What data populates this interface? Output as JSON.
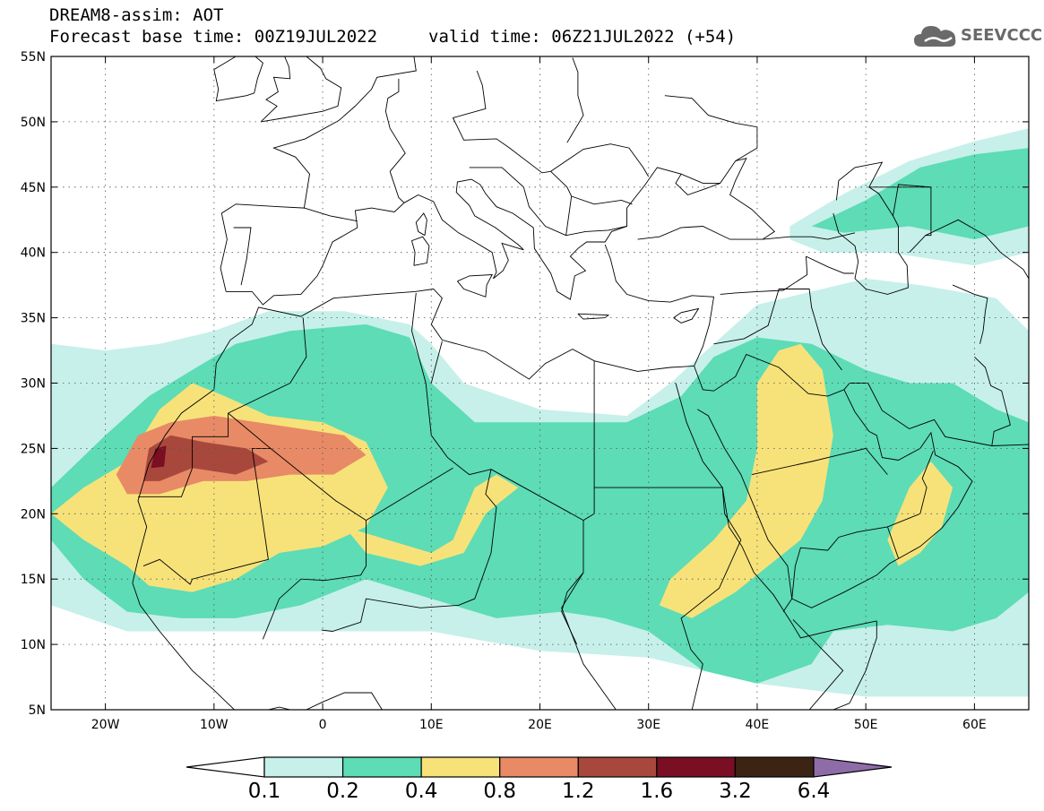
{
  "title": {
    "line1": "DREAM8-assim: AOT",
    "base_time": "Forecast base time: 00Z19JUL2022",
    "valid_time": "valid time: 06Z21JUL2022 (+54)"
  },
  "logo": {
    "text": "SEEVCCC",
    "icon": "cloud-icon"
  },
  "map_axes": {
    "lon_range": [
      -25,
      65
    ],
    "lat_range": [
      5,
      55
    ],
    "lon_ticks": [
      {
        "value": -20,
        "label": "20W"
      },
      {
        "value": -10,
        "label": "10W"
      },
      {
        "value": 0,
        "label": "0"
      },
      {
        "value": 10,
        "label": "10E"
      },
      {
        "value": 20,
        "label": "20E"
      },
      {
        "value": 30,
        "label": "30E"
      },
      {
        "value": 40,
        "label": "40E"
      },
      {
        "value": 50,
        "label": "50E"
      },
      {
        "value": 60,
        "label": "60E"
      }
    ],
    "lat_ticks": [
      {
        "value": 5,
        "label": "5N"
      },
      {
        "value": 10,
        "label": "10N"
      },
      {
        "value": 15,
        "label": "15N"
      },
      {
        "value": 20,
        "label": "20N"
      },
      {
        "value": 25,
        "label": "25N"
      },
      {
        "value": 30,
        "label": "30N"
      },
      {
        "value": 35,
        "label": "35N"
      },
      {
        "value": 40,
        "label": "40N"
      },
      {
        "value": 45,
        "label": "45N"
      },
      {
        "value": 50,
        "label": "50N"
      },
      {
        "value": 55,
        "label": "55N"
      }
    ],
    "grid": "dotted"
  },
  "colorbar": {
    "labels": [
      "0.1",
      "0.2",
      "0.4",
      "0.8",
      "1.2",
      "1.6",
      "3.2",
      "6.4"
    ],
    "colors": [
      "#ffffff",
      "#c7f0ea",
      "#5ddcb6",
      "#f7e27a",
      "#e88a66",
      "#a8483d",
      "#7a0e22",
      "#3b2414",
      "#8e6ca8"
    ]
  },
  "aot_regions": [
    {
      "level": 1,
      "polygon": [
        [
          -25,
          33
        ],
        [
          -20,
          32.5
        ],
        [
          -15,
          33
        ],
        [
          -10,
          34
        ],
        [
          -5,
          35.5
        ],
        [
          2,
          35.5
        ],
        [
          8,
          34.5
        ],
        [
          10,
          33
        ],
        [
          13,
          30
        ],
        [
          20,
          28
        ],
        [
          28,
          27.5
        ],
        [
          32,
          30
        ],
        [
          36,
          33
        ],
        [
          40,
          36
        ],
        [
          45,
          37
        ],
        [
          50,
          38
        ],
        [
          55,
          37.5
        ],
        [
          62,
          36.5
        ],
        [
          65,
          34
        ],
        [
          65,
          6
        ],
        [
          50,
          6
        ],
        [
          40,
          7
        ],
        [
          30,
          9
        ],
        [
          20,
          9.5
        ],
        [
          10,
          11
        ],
        [
          0,
          11
        ],
        [
          -10,
          11
        ],
        [
          -18,
          11
        ],
        [
          -25,
          13
        ]
      ]
    },
    {
      "level": 1,
      "polygon": [
        [
          43,
          42
        ],
        [
          48,
          44.5
        ],
        [
          54,
          47
        ],
        [
          60,
          48.5
        ],
        [
          65,
          49.5
        ],
        [
          65,
          40
        ],
        [
          60,
          39
        ],
        [
          52,
          40
        ],
        [
          46,
          40
        ],
        [
          43,
          41
        ]
      ]
    },
    {
      "level": 2,
      "polygon": [
        [
          -25,
          22
        ],
        [
          -20,
          26
        ],
        [
          -16,
          29
        ],
        [
          -12,
          31
        ],
        [
          -8,
          33
        ],
        [
          -3,
          34
        ],
        [
          4,
          34.5
        ],
        [
          8,
          33.5
        ],
        [
          10,
          30
        ],
        [
          14,
          27
        ],
        [
          20,
          27
        ],
        [
          28,
          27
        ],
        [
          33,
          29
        ],
        [
          36,
          32
        ],
        [
          40,
          33.5
        ],
        [
          45,
          33
        ],
        [
          50,
          31
        ],
        [
          54,
          30
        ],
        [
          58,
          30
        ],
        [
          62,
          28
        ],
        [
          65,
          27
        ],
        [
          65,
          14
        ],
        [
          62,
          12
        ],
        [
          58,
          11
        ],
        [
          52,
          11.5
        ],
        [
          47,
          11
        ],
        [
          45,
          8.5
        ],
        [
          40,
          7
        ],
        [
          35,
          8
        ],
        [
          30,
          11
        ],
        [
          26,
          12
        ],
        [
          22,
          12.5
        ],
        [
          16,
          12
        ],
        [
          10,
          13.5
        ],
        [
          4,
          15
        ],
        [
          -2,
          13
        ],
        [
          -8,
          12
        ],
        [
          -13,
          12
        ],
        [
          -18,
          12.5
        ],
        [
          -22,
          15
        ],
        [
          -25,
          18
        ]
      ]
    },
    {
      "level": 2,
      "polygon": [
        [
          45,
          42
        ],
        [
          50,
          44
        ],
        [
          55,
          46.5
        ],
        [
          60,
          47.5
        ],
        [
          65,
          48
        ],
        [
          65,
          42
        ],
        [
          60,
          41
        ],
        [
          54,
          42
        ],
        [
          48,
          41.5
        ]
      ]
    },
    {
      "level": 3,
      "polygon": [
        [
          -25,
          20
        ],
        [
          -22,
          22
        ],
        [
          -18,
          24
        ],
        [
          -15,
          28
        ],
        [
          -12,
          30
        ],
        [
          -9,
          29
        ],
        [
          -5,
          27.5
        ],
        [
          0,
          27
        ],
        [
          4,
          25.5
        ],
        [
          6,
          22
        ],
        [
          4,
          19
        ],
        [
          0,
          17.5
        ],
        [
          -4,
          17
        ],
        [
          -8,
          15
        ],
        [
          -12,
          14
        ],
        [
          -16,
          14.5
        ],
        [
          -18,
          16
        ],
        [
          -22,
          18
        ]
      ]
    },
    {
      "level": 3,
      "polygon": [
        [
          2,
          19
        ],
        [
          6,
          18
        ],
        [
          10,
          17
        ],
        [
          12,
          18
        ],
        [
          14,
          22
        ],
        [
          16,
          23
        ],
        [
          18,
          22
        ],
        [
          15,
          20
        ],
        [
          13,
          17
        ],
        [
          9,
          16
        ],
        [
          4,
          17
        ]
      ]
    },
    {
      "level": 3,
      "polygon": [
        [
          40,
          30
        ],
        [
          42,
          32.5
        ],
        [
          44,
          33
        ],
        [
          46,
          31
        ],
        [
          47,
          26
        ],
        [
          46,
          21
        ],
        [
          44,
          18
        ],
        [
          41,
          16
        ],
        [
          38,
          14
        ],
        [
          34,
          12
        ],
        [
          31,
          13
        ],
        [
          32,
          15
        ],
        [
          36,
          18
        ],
        [
          39,
          21
        ],
        [
          40,
          25
        ]
      ]
    },
    {
      "level": 3,
      "polygon": [
        [
          52,
          18
        ],
        [
          54,
          22
        ],
        [
          56,
          24
        ],
        [
          58,
          22
        ],
        [
          57,
          19
        ],
        [
          55,
          17
        ],
        [
          53,
          16
        ]
      ]
    },
    {
      "level": 4,
      "polygon": [
        [
          -19,
          23
        ],
        [
          -17,
          26
        ],
        [
          -14,
          27
        ],
        [
          -10,
          27.5
        ],
        [
          -6,
          27
        ],
        [
          -2,
          26.5
        ],
        [
          2,
          26
        ],
        [
          4,
          24.5
        ],
        [
          1,
          23
        ],
        [
          -3,
          23
        ],
        [
          -7,
          22.5
        ],
        [
          -11,
          22.5
        ],
        [
          -15,
          21.5
        ],
        [
          -18,
          21.5
        ]
      ]
    },
    {
      "level": 5,
      "polygon": [
        [
          -16.5,
          22.5
        ],
        [
          -16,
          25
        ],
        [
          -14,
          26
        ],
        [
          -11,
          25.5
        ],
        [
          -7,
          25
        ],
        [
          -5,
          24
        ],
        [
          -8,
          23
        ],
        [
          -12,
          23.5
        ],
        [
          -15,
          22.5
        ]
      ]
    },
    {
      "level": 6,
      "polygon": [
        [
          -15.8,
          23.5
        ],
        [
          -15.4,
          25
        ],
        [
          -14.4,
          25.2
        ],
        [
          -14.6,
          23.6
        ]
      ]
    }
  ]
}
